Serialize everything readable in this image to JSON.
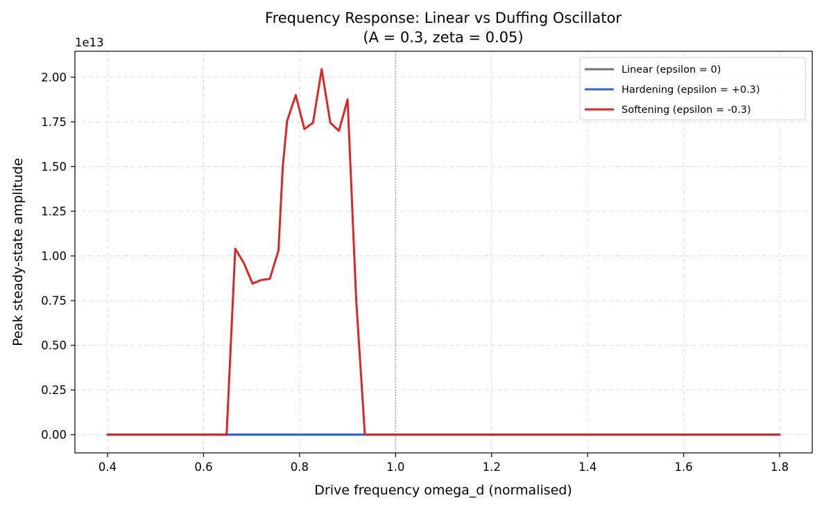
{
  "chart_data": {
    "type": "line",
    "title": "Frequency Response: Linear vs Duffing Oscillator",
    "subtitle": "(A = 0.3, zeta = 0.05)",
    "xlabel": "Drive frequency omega_d (normalised)",
    "ylabel": "Peak steady-state amplitude",
    "y_offset_label": "1e13",
    "y_scale_factor": 10000000000000.0,
    "xlim": [
      0.332,
      1.868
    ],
    "ylim": [
      -0.102,
      2.145
    ],
    "xticks": [
      0.4,
      0.6,
      0.8,
      1.0,
      1.2,
      1.4,
      1.6,
      1.8
    ],
    "xtick_labels": [
      "0.4",
      "0.6",
      "0.8",
      "1.0",
      "1.2",
      "1.4",
      "1.6",
      "1.8"
    ],
    "yticks": [
      0.0,
      0.25,
      0.5,
      0.75,
      1.0,
      1.25,
      1.5,
      1.75,
      2.0
    ],
    "ytick_labels": [
      "0.00",
      "0.25",
      "0.50",
      "0.75",
      "1.00",
      "1.25",
      "1.50",
      "1.75",
      "2.00"
    ],
    "grid": true,
    "reference_line_x": 1.0,
    "legend_position": "top-right",
    "series": [
      {
        "name": "Linear (epsilon = 0)",
        "color": "#64748b",
        "x": [
          0.4,
          1.8
        ],
        "y": [
          0.0,
          0.0
        ]
      },
      {
        "name": "Hardening (epsilon = +0.3)",
        "color": "#2563eb",
        "x": [
          0.4,
          1.8
        ],
        "y": [
          0.0,
          0.0
        ]
      },
      {
        "name": "Softening (epsilon = -0.3)",
        "color": "#dc2626",
        "x": [
          0.4,
          0.648,
          0.666,
          0.684,
          0.702,
          0.72,
          0.738,
          0.756,
          0.765,
          0.774,
          0.792,
          0.81,
          0.828,
          0.846,
          0.864,
          0.882,
          0.9,
          0.918,
          0.936,
          1.0,
          1.8
        ],
        "y": [
          0.0,
          0.0,
          1.04,
          0.96,
          0.845,
          0.865,
          0.872,
          1.03,
          1.5,
          1.755,
          1.9,
          1.71,
          1.745,
          2.045,
          1.745,
          1.7,
          1.875,
          0.75,
          0.0,
          0.0,
          0.0
        ]
      }
    ]
  }
}
